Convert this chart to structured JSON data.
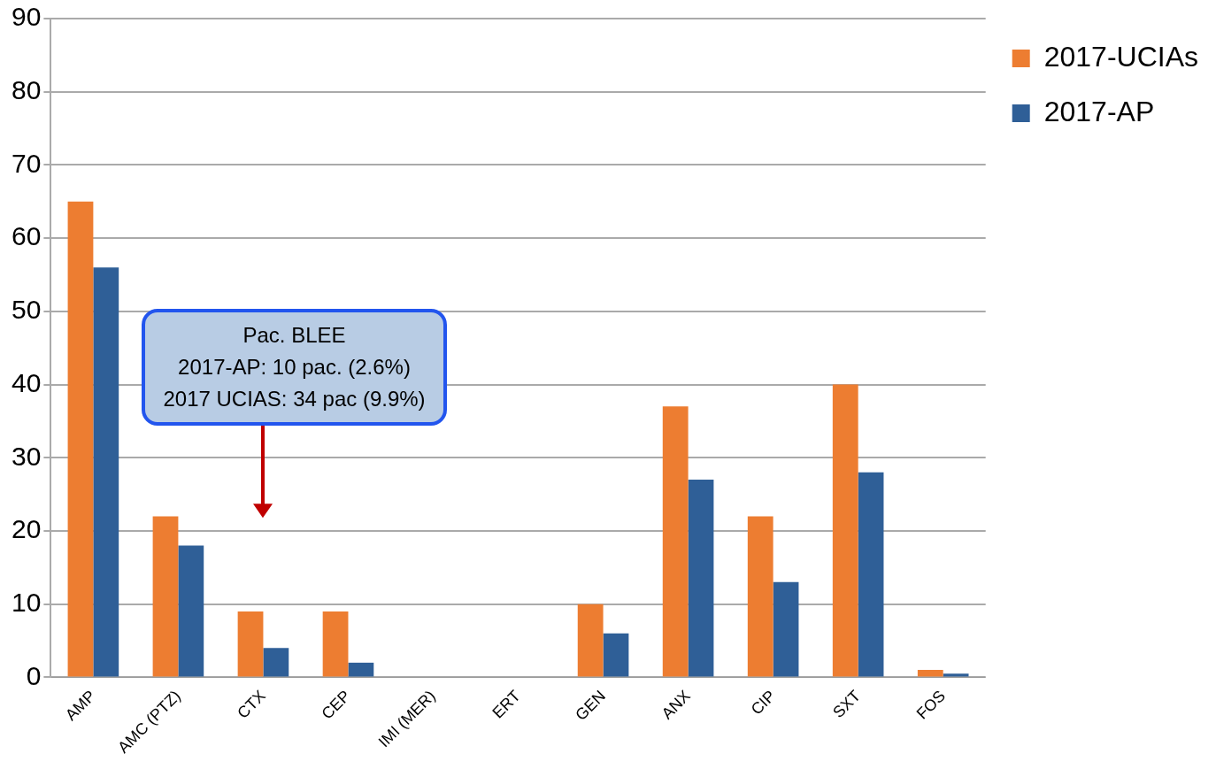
{
  "chart_data": {
    "type": "bar",
    "categories": [
      "AMP",
      "AMC (PTZ)",
      "CTX",
      "CEP",
      "IMI (MER)",
      "ERT",
      "GEN",
      "ANX",
      "CIP",
      "SXT",
      "FOS"
    ],
    "series": [
      {
        "name": "2017-UCIAs",
        "color": "#ed7d31",
        "values": [
          65,
          22,
          9,
          9,
          0,
          0,
          10,
          37,
          22,
          40,
          1
        ]
      },
      {
        "name": "2017-AP",
        "color": "#2f5f97",
        "values": [
          56,
          18,
          4,
          2,
          0,
          0,
          6,
          27,
          13,
          28,
          0.5
        ]
      }
    ],
    "ylim": [
      0,
      90
    ],
    "yticks": [
      0,
      10,
      20,
      30,
      40,
      50,
      60,
      70,
      80,
      90
    ],
    "grid": "y",
    "legend": "top right",
    "annotations": [
      "Pac. BLEE\n2017-AP: 10 pac. (2.6%)\n2017 UCIAS: 34 pac (9.9%)"
    ]
  }
}
